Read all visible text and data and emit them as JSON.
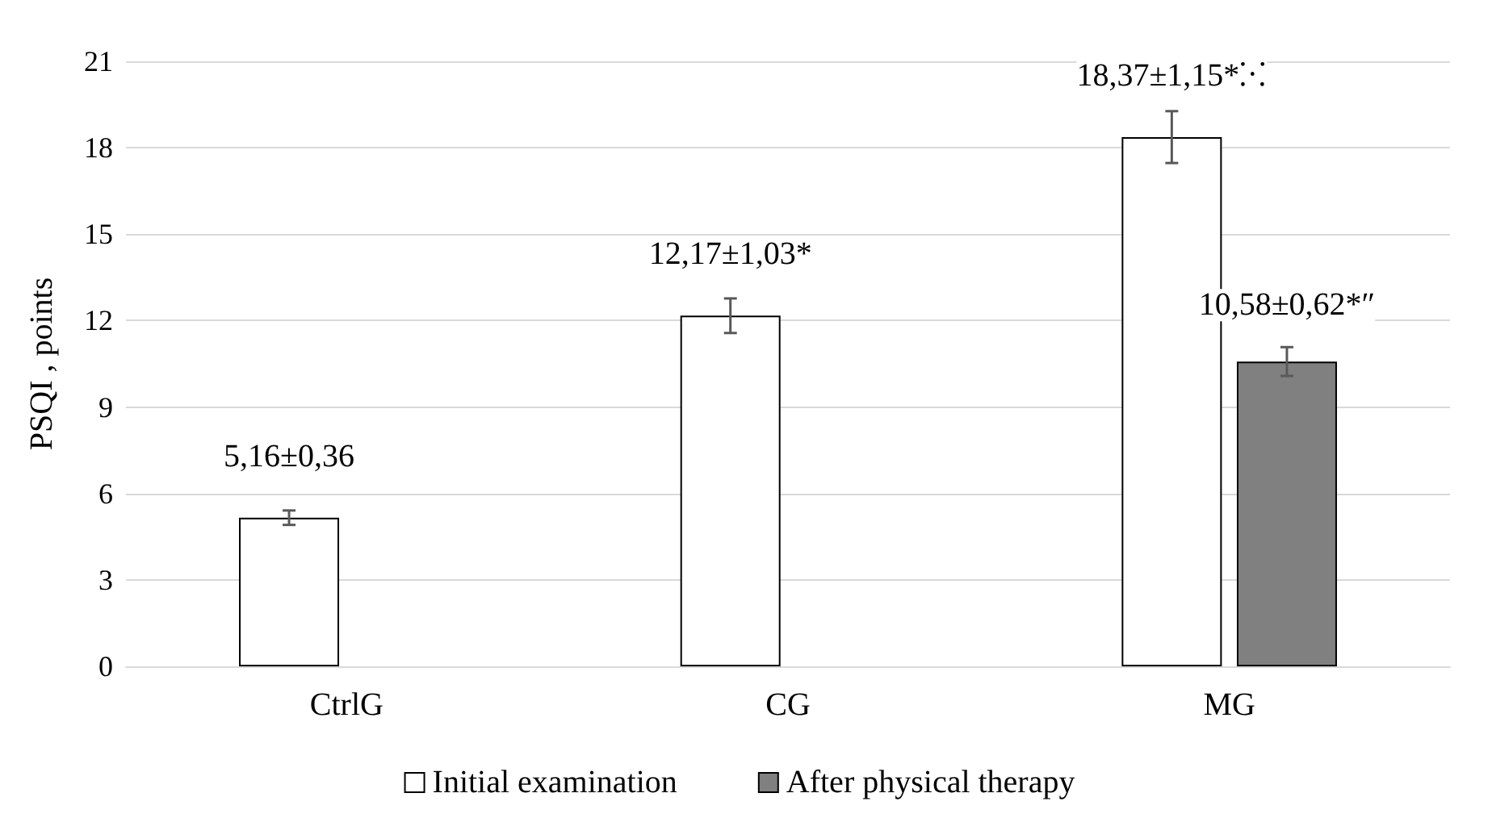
{
  "chart_data": {
    "type": "bar",
    "ylabel": "PSQI , points",
    "categories": [
      "CtrlG",
      "CG",
      "MG"
    ],
    "series": [
      {
        "name": "Initial examination",
        "color": "#ffffff",
        "values": [
          5.16,
          12.17,
          18.37
        ],
        "errors": [
          0.25,
          0.6,
          0.9
        ],
        "value_labels": [
          "5,16±0,36",
          "12,17±1,03*",
          "18,37±1,15*⁙"
        ]
      },
      {
        "name": "After physical therapy",
        "color": "#808080",
        "values": [
          null,
          null,
          10.58
        ],
        "errors": [
          null,
          null,
          0.5
        ],
        "value_labels": [
          null,
          null,
          "10,58±0,62*″"
        ]
      }
    ],
    "ylim": [
      0,
      21
    ],
    "yticks": [
      0,
      3,
      6,
      9,
      12,
      15,
      18,
      21
    ],
    "grid": "y",
    "legend": "bottom"
  }
}
